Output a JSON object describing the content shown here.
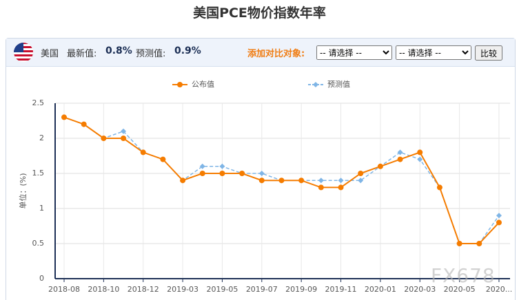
{
  "header": {
    "title": "美国PCE物价指数年率"
  },
  "info_bar": {
    "country": "美国",
    "latest_label": "最新值:",
    "latest_value": "0.8%",
    "forecast_label": "预测值:",
    "forecast_value": "0.9%",
    "compare_label": "添加对比对象:",
    "select_1": "-- 请选择 --",
    "select_2": "-- 请选择 --",
    "button": "比较"
  },
  "watermark": "FX678",
  "chart_data": {
    "type": "line",
    "y_label": "单位：(%)",
    "categories": [
      "2018-08",
      null,
      "2018-10",
      null,
      "2018-12",
      null,
      "2019-03",
      null,
      "2019-05",
      null,
      "2019-07",
      null,
      "2019-09",
      null,
      "2019-11",
      null,
      "2020-01",
      null,
      "2020-03",
      null,
      "2020-05",
      null,
      "2020..."
    ],
    "series": [
      {
        "name": "公布值",
        "color": "#f57c00",
        "values": [
          2.3,
          2.2,
          2.0,
          2.0,
          1.8,
          1.7,
          1.4,
          1.5,
          1.5,
          1.5,
          1.4,
          1.4,
          1.4,
          1.3,
          1.3,
          1.5,
          1.6,
          1.7,
          1.8,
          1.3,
          0.5,
          0.5,
          0.8
        ]
      },
      {
        "name": "预测值",
        "color": "#7fb5e6",
        "values": [
          2.3,
          2.2,
          2.0,
          2.1,
          1.8,
          1.7,
          1.4,
          1.6,
          1.6,
          1.5,
          1.5,
          1.4,
          1.4,
          1.4,
          1.4,
          1.4,
          1.6,
          1.8,
          1.7,
          1.3,
          0.5,
          0.5,
          0.9
        ]
      }
    ],
    "ylim": [
      0,
      2.5
    ],
    "yticks": [
      0,
      0.5,
      1,
      1.5,
      2,
      2.5
    ],
    "grid": true
  }
}
